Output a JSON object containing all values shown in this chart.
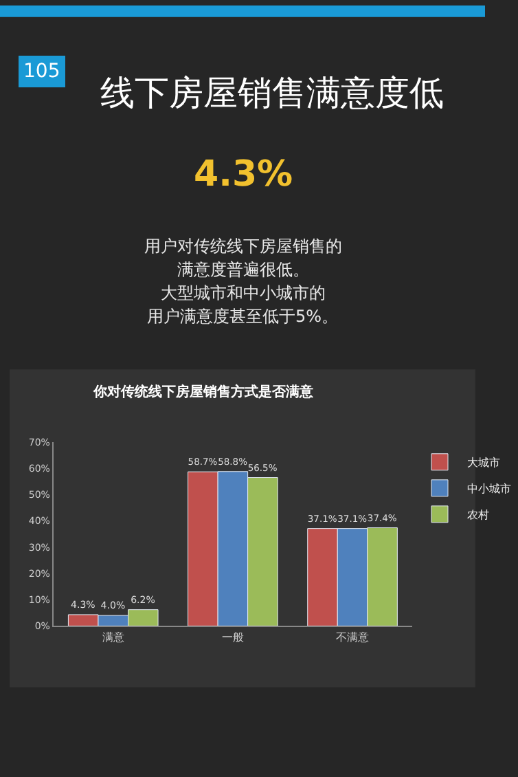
{
  "chart_data": {
    "type": "bar",
    "title": "线下房屋销售满意度低",
    "subtitle": "你对传统线下房屋销售方式是否满意",
    "annotations": [
      "105",
      "4.3%",
      "用户对传统线下房屋销售的",
      "满意度普遍很低。",
      "大型城市和中小城市的",
      "用户满意度甚至低于5%。"
    ],
    "categories": [
      "满意",
      "一般",
      "不满意"
    ],
    "series": [
      {
        "name": "大城市",
        "color": "#c0504d",
        "values": [
          4.3,
          58.7,
          37.1
        ],
        "value_labels": [
          "4.3%",
          "58.7%",
          "37.1%"
        ]
      },
      {
        "name": "中小城市",
        "color": "#4f81bd",
        "values": [
          4.0,
          58.8,
          37.1
        ],
        "value_labels": [
          "4.0%",
          "58.8%",
          "37.1%"
        ]
      },
      {
        "name": "农村",
        "color": "#9bbb59",
        "values": [
          6.2,
          56.5,
          37.4
        ],
        "value_labels": [
          "6.2%",
          "56.5%",
          "37.4%"
        ]
      }
    ],
    "ylim": [
      0,
      70
    ],
    "yticks": [
      {
        "value": 0,
        "label": "0%"
      },
      {
        "value": 10,
        "label": "10%"
      },
      {
        "value": 20,
        "label": "20%"
      },
      {
        "value": 30,
        "label": "30%"
      },
      {
        "value": 40,
        "label": "40%"
      },
      {
        "value": 50,
        "label": "50%"
      },
      {
        "value": 60,
        "label": "60%"
      },
      {
        "value": 70,
        "label": "70%"
      }
    ],
    "grid": false,
    "legend": "right"
  }
}
